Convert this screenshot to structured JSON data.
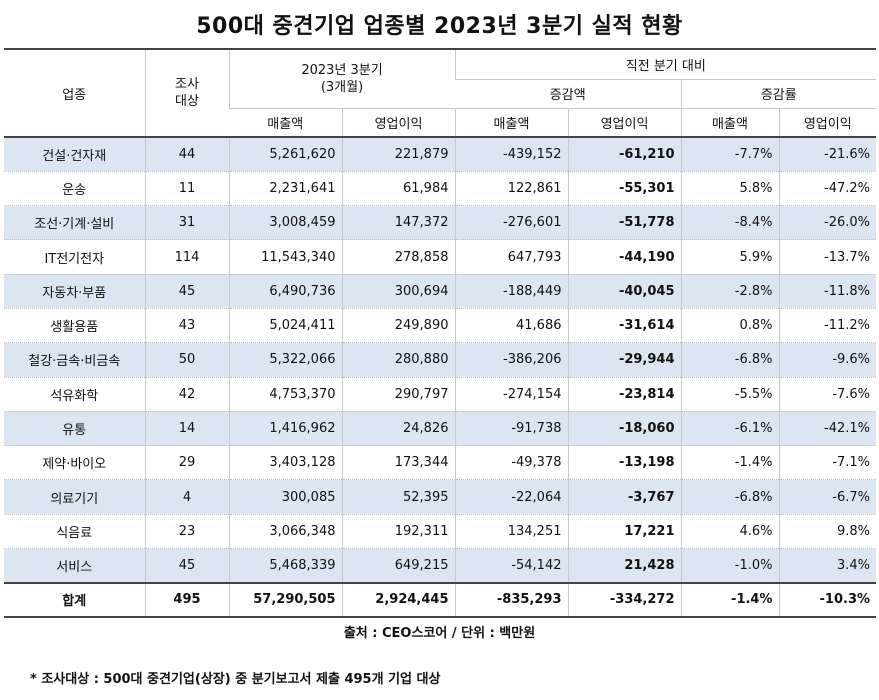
{
  "title": "500대 중견기업 업종별 2023년 3분기 실적 현황",
  "header": {
    "industry": "업종",
    "sample": "조사\n대상",
    "period": "2023년 3분기\n(3개월)",
    "vs_prev": "직전 분기 대비",
    "change_amount": "증감액",
    "change_rate": "증감률",
    "sales": "매출액",
    "op_profit": "영업이익"
  },
  "rows": [
    {
      "industry": "건설·건자재",
      "n": "44",
      "sales": "5,261,620",
      "op": "221,879",
      "d_sales": "-439,152",
      "d_op": "-61,210",
      "r_sales": "-7.7%",
      "r_op": "-21.6%"
    },
    {
      "industry": "운송",
      "n": "11",
      "sales": "2,231,641",
      "op": "61,984",
      "d_sales": "122,861",
      "d_op": "-55,301",
      "r_sales": "5.8%",
      "r_op": "-47.2%"
    },
    {
      "industry": "조선·기계·설비",
      "n": "31",
      "sales": "3,008,459",
      "op": "147,372",
      "d_sales": "-276,601",
      "d_op": "-51,778",
      "r_sales": "-8.4%",
      "r_op": "-26.0%"
    },
    {
      "industry": "IT전기전자",
      "n": "114",
      "sales": "11,543,340",
      "op": "278,858",
      "d_sales": "647,793",
      "d_op": "-44,190",
      "r_sales": "5.9%",
      "r_op": "-13.7%"
    },
    {
      "industry": "자동차·부품",
      "n": "45",
      "sales": "6,490,736",
      "op": "300,694",
      "d_sales": "-188,449",
      "d_op": "-40,045",
      "r_sales": "-2.8%",
      "r_op": "-11.8%"
    },
    {
      "industry": "생활용품",
      "n": "43",
      "sales": "5,024,411",
      "op": "249,890",
      "d_sales": "41,686",
      "d_op": "-31,614",
      "r_sales": "0.8%",
      "r_op": "-11.2%"
    },
    {
      "industry": "철강·금속·비금속",
      "n": "50",
      "sales": "5,322,066",
      "op": "280,880",
      "d_sales": "-386,206",
      "d_op": "-29,944",
      "r_sales": "-6.8%",
      "r_op": "-9.6%"
    },
    {
      "industry": "석유화학",
      "n": "42",
      "sales": "4,753,370",
      "op": "290,797",
      "d_sales": "-274,154",
      "d_op": "-23,814",
      "r_sales": "-5.5%",
      "r_op": "-7.6%"
    },
    {
      "industry": "유통",
      "n": "14",
      "sales": "1,416,962",
      "op": "24,826",
      "d_sales": "-91,738",
      "d_op": "-18,060",
      "r_sales": "-6.1%",
      "r_op": "-42.1%"
    },
    {
      "industry": "제약·바이오",
      "n": "29",
      "sales": "3,403,128",
      "op": "173,344",
      "d_sales": "-49,378",
      "d_op": "-13,198",
      "r_sales": "-1.4%",
      "r_op": "-7.1%"
    },
    {
      "industry": "의료기기",
      "n": "4",
      "sales": "300,085",
      "op": "52,395",
      "d_sales": "-22,064",
      "d_op": "-3,767",
      "r_sales": "-6.8%",
      "r_op": "-6.7%"
    },
    {
      "industry": "식음료",
      "n": "23",
      "sales": "3,066,348",
      "op": "192,311",
      "d_sales": "134,251",
      "d_op": "17,221",
      "r_sales": "4.6%",
      "r_op": "9.8%"
    },
    {
      "industry": "서비스",
      "n": "45",
      "sales": "5,468,339",
      "op": "649,215",
      "d_sales": "-54,142",
      "d_op": "21,428",
      "r_sales": "-1.0%",
      "r_op": "3.4%"
    }
  ],
  "total": {
    "industry": "합계",
    "n": "495",
    "sales": "57,290,505",
    "op": "2,924,445",
    "d_sales": "-835,293",
    "d_op": "-334,272",
    "r_sales": "-1.4%",
    "r_op": "-10.3%"
  },
  "source": "출처 : CEO스코어 / 단위 : 백만원",
  "footnote": "* 조사대상 : 500대 중견기업(상장) 중 분기보고서 제출 495개 기업 대상"
}
